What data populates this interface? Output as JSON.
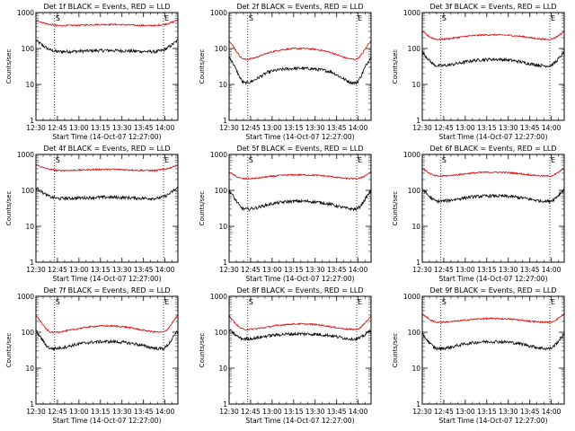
{
  "chart_data": [
    {
      "type": "line",
      "title": "Det 1f BLACK = Events, RED = LLD",
      "ylabel": "Counts/sec",
      "xlabel": "Start Time (14-Oct-07 12:27:00)",
      "markers": [
        "S",
        "E"
      ],
      "series": [
        {
          "name": "Events",
          "color": "#000000",
          "profile": "u",
          "base": 85,
          "edge": 170,
          "min": 68
        },
        {
          "name": "LLD",
          "color": "#dd0000",
          "profile": "u",
          "base": 450,
          "edge": 620,
          "min": 390
        }
      ]
    },
    {
      "type": "line",
      "title": "Det 2f BLACK = Events, RED = LLD",
      "ylabel": "Counts/sec",
      "xlabel": "Start Time (14-Oct-07 12:27:00)",
      "markers": [
        "S",
        "E"
      ],
      "series": [
        {
          "name": "Events",
          "color": "#000000",
          "profile": "w",
          "base": 22,
          "edge": 60,
          "min": 11,
          "peak": 28
        },
        {
          "name": "LLD",
          "color": "#dd0000",
          "profile": "w",
          "base": 75,
          "edge": 170,
          "min": 50,
          "peak": 100
        }
      ]
    },
    {
      "type": "line",
      "title": "Det 3f BLACK = Events, RED = LLD",
      "ylabel": "Counts/sec",
      "xlabel": "Start Time (14-Oct-07 12:27:00)",
      "markers": [
        "S",
        "E"
      ],
      "series": [
        {
          "name": "Events",
          "color": "#000000",
          "profile": "w",
          "base": 40,
          "edge": 80,
          "min": 33,
          "peak": 50
        },
        {
          "name": "LLD",
          "color": "#dd0000",
          "profile": "w",
          "base": 210,
          "edge": 300,
          "min": 180,
          "peak": 240
        }
      ]
    },
    {
      "type": "line",
      "title": "Det 4f BLACK = Events, RED = LLD",
      "ylabel": "Counts/sec",
      "xlabel": "Start Time (14-Oct-07 12:27:00)",
      "markers": [
        "S",
        "E"
      ],
      "series": [
        {
          "name": "Events",
          "color": "#000000",
          "profile": "u",
          "base": 62,
          "edge": 120,
          "min": 50
        },
        {
          "name": "LLD",
          "color": "#dd0000",
          "profile": "u",
          "base": 370,
          "edge": 520,
          "min": 330
        }
      ]
    },
    {
      "type": "line",
      "title": "Det 5f BLACK = Events, RED = LLD",
      "ylabel": "Counts/sec",
      "xlabel": "Start Time (14-Oct-07 12:27:00)",
      "markers": [
        "S",
        "E"
      ],
      "series": [
        {
          "name": "Events",
          "color": "#000000",
          "profile": "w",
          "base": 40,
          "edge": 100,
          "min": 30,
          "peak": 50
        },
        {
          "name": "LLD",
          "color": "#dd0000",
          "profile": "w",
          "base": 240,
          "edge": 330,
          "min": 210,
          "peak": 270
        }
      ]
    },
    {
      "type": "line",
      "title": "Det 6f BLACK = Events, RED = LLD",
      "ylabel": "Counts/sec",
      "xlabel": "Start Time (14-Oct-07 12:27:00)",
      "markers": [
        "S",
        "E"
      ],
      "series": [
        {
          "name": "Events",
          "color": "#000000",
          "profile": "w",
          "base": 60,
          "edge": 110,
          "min": 50,
          "peak": 70
        },
        {
          "name": "LLD",
          "color": "#dd0000",
          "profile": "w",
          "base": 280,
          "edge": 420,
          "min": 250,
          "peak": 320
        }
      ]
    },
    {
      "type": "line",
      "title": "Det 7f BLACK = Events, RED = LLD",
      "ylabel": "Counts/sec",
      "xlabel": "Start Time (14-Oct-07 12:27:00)",
      "markers": [
        "S",
        "E"
      ],
      "series": [
        {
          "name": "Events",
          "color": "#000000",
          "profile": "w",
          "base": 45,
          "edge": 110,
          "min": 35,
          "peak": 55
        },
        {
          "name": "LLD",
          "color": "#dd0000",
          "profile": "w",
          "base": 120,
          "edge": 300,
          "min": 100,
          "peak": 150
        }
      ]
    },
    {
      "type": "line",
      "title": "Det 8f BLACK = Events, RED = LLD",
      "ylabel": "Counts/sec",
      "xlabel": "Start Time (14-Oct-07 12:27:00)",
      "markers": [
        "S",
        "E"
      ],
      "series": [
        {
          "name": "Events",
          "color": "#000000",
          "profile": "w",
          "base": 80,
          "edge": 120,
          "min": 65,
          "peak": 90
        },
        {
          "name": "LLD",
          "color": "#dd0000",
          "profile": "w",
          "base": 140,
          "edge": 280,
          "min": 120,
          "peak": 170
        }
      ]
    },
    {
      "type": "line",
      "title": "Det 9f BLACK = Events, RED = LLD",
      "ylabel": "Counts/sec",
      "xlabel": "Start Time (14-Oct-07 12:27:00)",
      "markers": [
        "S",
        "E"
      ],
      "series": [
        {
          "name": "Events",
          "color": "#000000",
          "profile": "w",
          "base": 45,
          "edge": 90,
          "min": 35,
          "peak": 55
        },
        {
          "name": "LLD",
          "color": "#dd0000",
          "profile": "w",
          "base": 210,
          "edge": 330,
          "min": 190,
          "peak": 240
        }
      ]
    }
  ],
  "axes": {
    "x_ticks": [
      "12:30",
      "12:45",
      "13:00",
      "13:15",
      "13:30",
      "13:45",
      "14:00"
    ],
    "x_tick_minutes": [
      0,
      15,
      30,
      45,
      60,
      75,
      90
    ],
    "x_range_minutes": [
      0,
      99
    ],
    "x_markers_minutes": [
      13,
      89
    ],
    "y_ticks": [
      "1",
      "10",
      "100",
      "1000"
    ],
    "y_tick_values": [
      1,
      10,
      100,
      1000
    ],
    "y_range": [
      1,
      1000
    ],
    "y_scale": "log"
  }
}
